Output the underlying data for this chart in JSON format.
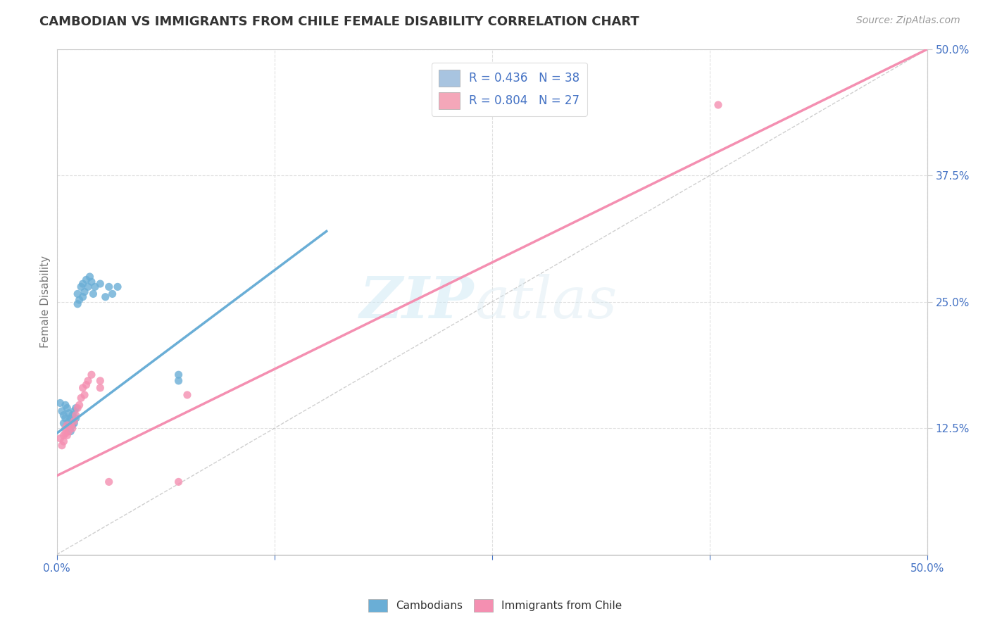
{
  "title": "CAMBODIAN VS IMMIGRANTS FROM CHILE FEMALE DISABILITY CORRELATION CHART",
  "source_text": "Source: ZipAtlas.com",
  "ylabel": "Female Disability",
  "xlabel": "",
  "xlim": [
    0.0,
    0.5
  ],
  "ylim": [
    0.0,
    0.5
  ],
  "xtick_labels_bottom": [
    "0.0%",
    "",
    "",
    "",
    "50.0%"
  ],
  "xtick_vals": [
    0.0,
    0.125,
    0.25,
    0.375,
    0.5
  ],
  "ytick_vals": [
    0.125,
    0.25,
    0.375,
    0.5
  ],
  "legend_entries": [
    {
      "label": "R = 0.436   N = 38",
      "color": "#a8c4e0"
    },
    {
      "label": "R = 0.804   N = 27",
      "color": "#f4a7b9"
    }
  ],
  "watermark_zip": "ZIP",
  "watermark_atlas": "atlas",
  "cambodian_color": "#6aaed6",
  "chile_color": "#f48fb1",
  "cambodian_scatter": [
    [
      0.002,
      0.15
    ],
    [
      0.003,
      0.142
    ],
    [
      0.004,
      0.138
    ],
    [
      0.004,
      0.13
    ],
    [
      0.005,
      0.148
    ],
    [
      0.005,
      0.135
    ],
    [
      0.006,
      0.145
    ],
    [
      0.006,
      0.128
    ],
    [
      0.007,
      0.14
    ],
    [
      0.007,
      0.132
    ],
    [
      0.008,
      0.135
    ],
    [
      0.008,
      0.122
    ],
    [
      0.009,
      0.138
    ],
    [
      0.009,
      0.128
    ],
    [
      0.01,
      0.142
    ],
    [
      0.01,
      0.13
    ],
    [
      0.011,
      0.145
    ],
    [
      0.011,
      0.135
    ],
    [
      0.012,
      0.248
    ],
    [
      0.012,
      0.258
    ],
    [
      0.013,
      0.252
    ],
    [
      0.014,
      0.265
    ],
    [
      0.015,
      0.255
    ],
    [
      0.015,
      0.268
    ],
    [
      0.016,
      0.26
    ],
    [
      0.017,
      0.272
    ],
    [
      0.018,
      0.265
    ],
    [
      0.019,
      0.275
    ],
    [
      0.02,
      0.27
    ],
    [
      0.021,
      0.258
    ],
    [
      0.022,
      0.265
    ],
    [
      0.025,
      0.268
    ],
    [
      0.028,
      0.255
    ],
    [
      0.03,
      0.265
    ],
    [
      0.032,
      0.258
    ],
    [
      0.035,
      0.265
    ],
    [
      0.07,
      0.178
    ],
    [
      0.07,
      0.172
    ]
  ],
  "chile_scatter": [
    [
      0.002,
      0.115
    ],
    [
      0.003,
      0.108
    ],
    [
      0.004,
      0.118
    ],
    [
      0.004,
      0.112
    ],
    [
      0.005,
      0.12
    ],
    [
      0.005,
      0.125
    ],
    [
      0.006,
      0.128
    ],
    [
      0.006,
      0.118
    ],
    [
      0.007,
      0.122
    ],
    [
      0.008,
      0.128
    ],
    [
      0.009,
      0.125
    ],
    [
      0.01,
      0.132
    ],
    [
      0.011,
      0.138
    ],
    [
      0.012,
      0.145
    ],
    [
      0.013,
      0.148
    ],
    [
      0.014,
      0.155
    ],
    [
      0.015,
      0.165
    ],
    [
      0.016,
      0.158
    ],
    [
      0.017,
      0.168
    ],
    [
      0.018,
      0.172
    ],
    [
      0.02,
      0.178
    ],
    [
      0.025,
      0.165
    ],
    [
      0.025,
      0.172
    ],
    [
      0.03,
      0.072
    ],
    [
      0.075,
      0.158
    ],
    [
      0.38,
      0.445
    ],
    [
      0.07,
      0.072
    ]
  ],
  "ref_line_color": "#bbbbbb",
  "grid_color": "#e0e0e0",
  "background_color": "#ffffff",
  "title_color": "#333333",
  "axis_label_color": "#777777",
  "tick_color": "#4472c4",
  "blue_reg_line": [
    [
      0.0,
      0.12
    ],
    [
      0.155,
      0.32
    ]
  ],
  "pink_reg_line": [
    [
      0.0,
      0.078
    ],
    [
      0.5,
      0.5
    ]
  ]
}
